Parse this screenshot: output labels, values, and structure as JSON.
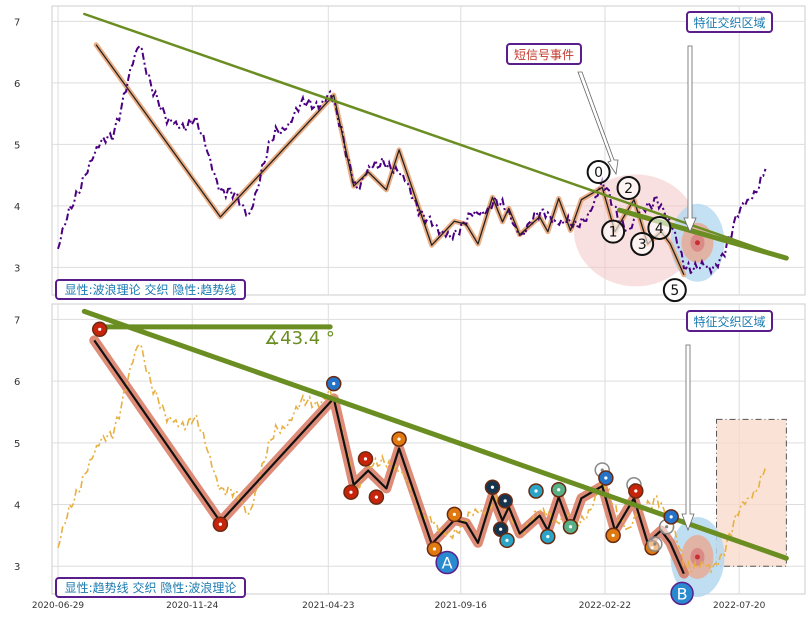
{
  "chart_data": [
    {
      "type": "line",
      "panel": "top",
      "ylim": [
        2.55,
        7.25
      ],
      "yticks": [
        3,
        4,
        5,
        6,
        7
      ],
      "xticks": [
        "2020-06-29",
        "2020-11-24",
        "2021-04-23",
        "2021-09-16",
        "2022-02-22",
        "2022-07-20"
      ],
      "x": [
        "2020-06-29",
        "2020-07-29",
        "2020-08-28",
        "2020-09-27",
        "2020-10-27",
        "2020-11-26",
        "2020-12-26",
        "2021-01-25",
        "2021-02-24",
        "2021-03-26",
        "2021-04-25",
        "2021-05-25",
        "2021-06-24",
        "2021-07-24",
        "2021-08-23",
        "2021-09-22",
        "2021-10-22",
        "2021-11-21",
        "2021-12-21",
        "2022-01-20",
        "2022-02-19",
        "2022-03-21",
        "2022-04-20",
        "2022-05-20",
        "2022-06-19",
        "2022-07-19",
        "2022-08-18"
      ],
      "series": [
        {
          "values": [
            3.3,
            4.6,
            5.2,
            6.6,
            5.3,
            5.4,
            4.3,
            3.9,
            5.2,
            5.6,
            5.8,
            4.3,
            4.8,
            4.2,
            3.5,
            3.7,
            4.1,
            3.6,
            3.9,
            3.6,
            4.3,
            3.6,
            4.2,
            3.1,
            2.9,
            3.8,
            4.6
          ]
        }
      ],
      "wave_points": [
        {
          "x": "2020-08-10",
          "y": 6.62
        },
        {
          "x": "2020-12-25",
          "y": 3.82
        },
        {
          "x": "2021-04-29",
          "y": 5.8
        },
        {
          "x": "2021-05-21",
          "y": 4.32
        },
        {
          "x": "2021-06-06",
          "y": 4.55
        },
        {
          "x": "2021-06-26",
          "y": 4.26
        },
        {
          "x": "2021-07-10",
          "y": 4.91
        },
        {
          "x": "2021-08-15",
          "y": 3.36
        },
        {
          "x": "2021-09-09",
          "y": 3.75
        },
        {
          "x": "2021-09-22",
          "y": 3.7
        },
        {
          "x": "2021-10-05",
          "y": 3.38
        },
        {
          "x": "2021-10-21",
          "y": 4.14
        },
        {
          "x": "2021-11-01",
          "y": 3.74
        },
        {
          "x": "2021-11-08",
          "y": 3.96
        },
        {
          "x": "2021-11-20",
          "y": 3.53
        },
        {
          "x": "2021-12-12",
          "y": 3.82
        },
        {
          "x": "2021-12-21",
          "y": 3.58
        },
        {
          "x": "2022-01-02",
          "y": 4.12
        },
        {
          "x": "2022-01-15",
          "y": 3.6
        },
        {
          "x": "2022-01-27",
          "y": 4.1
        },
        {
          "x": "2022-02-19",
          "y": 4.3
        },
        {
          "x": "2022-03-05",
          "y": 3.58
        },
        {
          "x": "2022-03-26",
          "y": 4.1
        },
        {
          "x": "2022-04-10",
          "y": 3.38
        },
        {
          "x": "2022-04-25",
          "y": 3.58
        },
        {
          "x": "2022-05-05",
          "y": 3.38
        },
        {
          "x": "2022-05-20",
          "y": 2.88
        }
      ],
      "trendline": [
        {
          "x": "2020-07-28",
          "y": 7.12
        },
        {
          "x": "2022-09-10",
          "y": 3.15
        }
      ],
      "numbered_markers": [
        {
          "label": "0",
          "x": "2022-02-15",
          "y": 4.55
        },
        {
          "label": "1",
          "x": "2022-03-03",
          "y": 3.58
        },
        {
          "label": "2",
          "x": "2022-03-20",
          "y": 4.29
        },
        {
          "label": "3",
          "x": "2022-04-04",
          "y": 3.38
        },
        {
          "label": "4",
          "x": "2022-04-23",
          "y": 3.64
        },
        {
          "label": "5",
          "x": "2022-05-10",
          "y": 2.63
        }
      ],
      "callouts": {
        "feature": "特征交织区域",
        "short_signal": "短信号事件"
      },
      "annotation": "显性:波浪理论 交织 隐性:趋势线",
      "colors": {
        "price": "#4b0082",
        "wave_fill": "#e8a070",
        "wave_line": "#222222",
        "trend": "#6b8e23",
        "ellipse_pink": "#f4c6c6",
        "ellipse_blue": "#b5d8f0"
      }
    },
    {
      "type": "line",
      "panel": "bottom",
      "ylim": [
        2.55,
        7.25
      ],
      "yticks": [
        3,
        4,
        5,
        6,
        7
      ],
      "xticks": [
        "2020-06-29",
        "2020-11-24",
        "2021-04-23",
        "2021-09-16",
        "2022-02-22",
        "2022-07-20"
      ],
      "x": [
        "2020-06-29",
        "2020-07-29",
        "2020-08-28",
        "2020-09-27",
        "2020-10-27",
        "2020-11-26",
        "2020-12-26",
        "2021-01-25",
        "2021-02-24",
        "2021-03-26",
        "2021-04-25",
        "2021-05-25",
        "2021-06-24",
        "2021-07-24",
        "2021-08-23",
        "2021-09-22",
        "2021-10-22",
        "2021-11-21",
        "2021-12-21",
        "2022-01-20",
        "2022-02-19",
        "2022-03-21",
        "2022-04-20",
        "2022-05-20",
        "2022-06-19",
        "2022-07-19",
        "2022-08-18"
      ],
      "series": [
        {
          "values": [
            3.3,
            4.6,
            5.2,
            6.6,
            5.3,
            5.4,
            4.3,
            3.9,
            5.2,
            5.6,
            5.8,
            4.3,
            4.8,
            4.2,
            3.5,
            3.7,
            4.1,
            3.6,
            3.9,
            3.6,
            4.3,
            3.6,
            4.2,
            3.1,
            2.9,
            3.8,
            4.6
          ]
        }
      ],
      "wave_points": [
        {
          "x": "2020-08-08",
          "y": 6.66
        },
        {
          "x": "2020-12-25",
          "y": 3.72
        },
        {
          "x": "2021-04-29",
          "y": 5.72
        },
        {
          "x": "2021-05-21",
          "y": 4.32
        },
        {
          "x": "2021-06-06",
          "y": 4.55
        },
        {
          "x": "2021-06-26",
          "y": 4.26
        },
        {
          "x": "2021-07-10",
          "y": 4.91
        },
        {
          "x": "2021-08-15",
          "y": 3.36
        },
        {
          "x": "2021-09-09",
          "y": 3.75
        },
        {
          "x": "2021-09-22",
          "y": 3.7
        },
        {
          "x": "2021-10-05",
          "y": 3.38
        },
        {
          "x": "2021-10-21",
          "y": 4.14
        },
        {
          "x": "2021-11-01",
          "y": 3.74
        },
        {
          "x": "2021-11-08",
          "y": 3.96
        },
        {
          "x": "2021-11-20",
          "y": 3.53
        },
        {
          "x": "2021-12-12",
          "y": 3.82
        },
        {
          "x": "2021-12-21",
          "y": 3.58
        },
        {
          "x": "2022-01-02",
          "y": 4.12
        },
        {
          "x": "2022-01-15",
          "y": 3.6
        },
        {
          "x": "2022-01-27",
          "y": 4.1
        },
        {
          "x": "2022-02-19",
          "y": 4.3
        },
        {
          "x": "2022-03-05",
          "y": 3.58
        },
        {
          "x": "2022-03-26",
          "y": 4.1
        },
        {
          "x": "2022-04-10",
          "y": 3.38
        },
        {
          "x": "2022-04-25",
          "y": 3.58
        },
        {
          "x": "2022-05-05",
          "y": 3.38
        },
        {
          "x": "2022-05-20",
          "y": 2.88
        }
      ],
      "trendline": [
        {
          "x": "2020-07-28",
          "y": 7.13
        },
        {
          "x": "2022-09-10",
          "y": 3.13
        }
      ],
      "angle_reference": {
        "x0": "2020-08-14",
        "x1": "2021-04-25",
        "y": 6.88
      },
      "angle_label": "∡43.4 °",
      "markers": [
        {
          "x": "2020-08-14",
          "y": 6.84,
          "color": "#c8240c"
        },
        {
          "x": "2020-12-25",
          "y": 3.68,
          "color": "#c8240c"
        },
        {
          "x": "2021-04-29",
          "y": 5.96,
          "color": "#2473c8"
        },
        {
          "x": "2021-05-18",
          "y": 4.2,
          "color": "#c8240c"
        },
        {
          "x": "2021-06-03",
          "y": 4.74,
          "color": "#c8240c"
        },
        {
          "x": "2021-06-15",
          "y": 4.12,
          "color": "#c8240c"
        },
        {
          "x": "2021-07-10",
          "y": 5.06,
          "color": "#e07a10"
        },
        {
          "x": "2021-08-18",
          "y": 3.28,
          "color": "#e07a10"
        },
        {
          "x": "2021-09-09",
          "y": 3.84,
          "color": "#e07a10"
        },
        {
          "x": "2021-10-21",
          "y": 4.28,
          "color": "#17344f"
        },
        {
          "x": "2021-10-30",
          "y": 3.6,
          "color": "#17344f"
        },
        {
          "x": "2021-11-04",
          "y": 4.06,
          "color": "#17344f"
        },
        {
          "x": "2021-11-06",
          "y": 3.42,
          "color": "#2aa5c8"
        },
        {
          "x": "2021-12-08",
          "y": 4.22,
          "color": "#2aa5c8"
        },
        {
          "x": "2021-12-21",
          "y": 3.48,
          "color": "#2aa5c8"
        },
        {
          "x": "2022-01-02",
          "y": 4.24,
          "color": "#58b088"
        },
        {
          "x": "2022-01-15",
          "y": 3.64,
          "color": "#58b088"
        },
        {
          "x": "2022-02-19",
          "y": 4.56,
          "color": "#ffffff"
        },
        {
          "x": "2022-02-23",
          "y": 4.43,
          "color": "#2473c8"
        },
        {
          "x": "2022-03-03",
          "y": 3.5,
          "color": "#e07a10"
        },
        {
          "x": "2022-03-26",
          "y": 4.32,
          "color": "#ffffff"
        },
        {
          "x": "2022-03-28",
          "y": 4.22,
          "color": "#c8240c"
        },
        {
          "x": "2022-04-15",
          "y": 3.3,
          "color": "#e07a10"
        },
        {
          "x": "2022-04-18",
          "y": 3.36,
          "color": "#ffffff"
        },
        {
          "x": "2022-05-01",
          "y": 3.64,
          "color": "#ffffff"
        },
        {
          "x": "2022-05-06",
          "y": 3.8,
          "color": "#2473c8"
        }
      ],
      "letter_markers": [
        {
          "label": "A",
          "x": "2021-09-01",
          "y": 3.06
        },
        {
          "label": "B",
          "x": "2022-05-18",
          "y": 2.56
        }
      ],
      "forecast_box": {
        "x0": "2022-06-25",
        "x1": "2022-09-10",
        "y0": 3.0,
        "y1": 5.38
      },
      "callouts": {
        "feature": "特征交织区域"
      },
      "annotation": "显性:趋势线 交织 隐性:波浪理论",
      "colors": {
        "price": "#e8b040",
        "wave_fill": "#d87860",
        "wave_line": "#111111",
        "trend": "#6b8e23",
        "box": "#f8d8c8"
      }
    }
  ]
}
